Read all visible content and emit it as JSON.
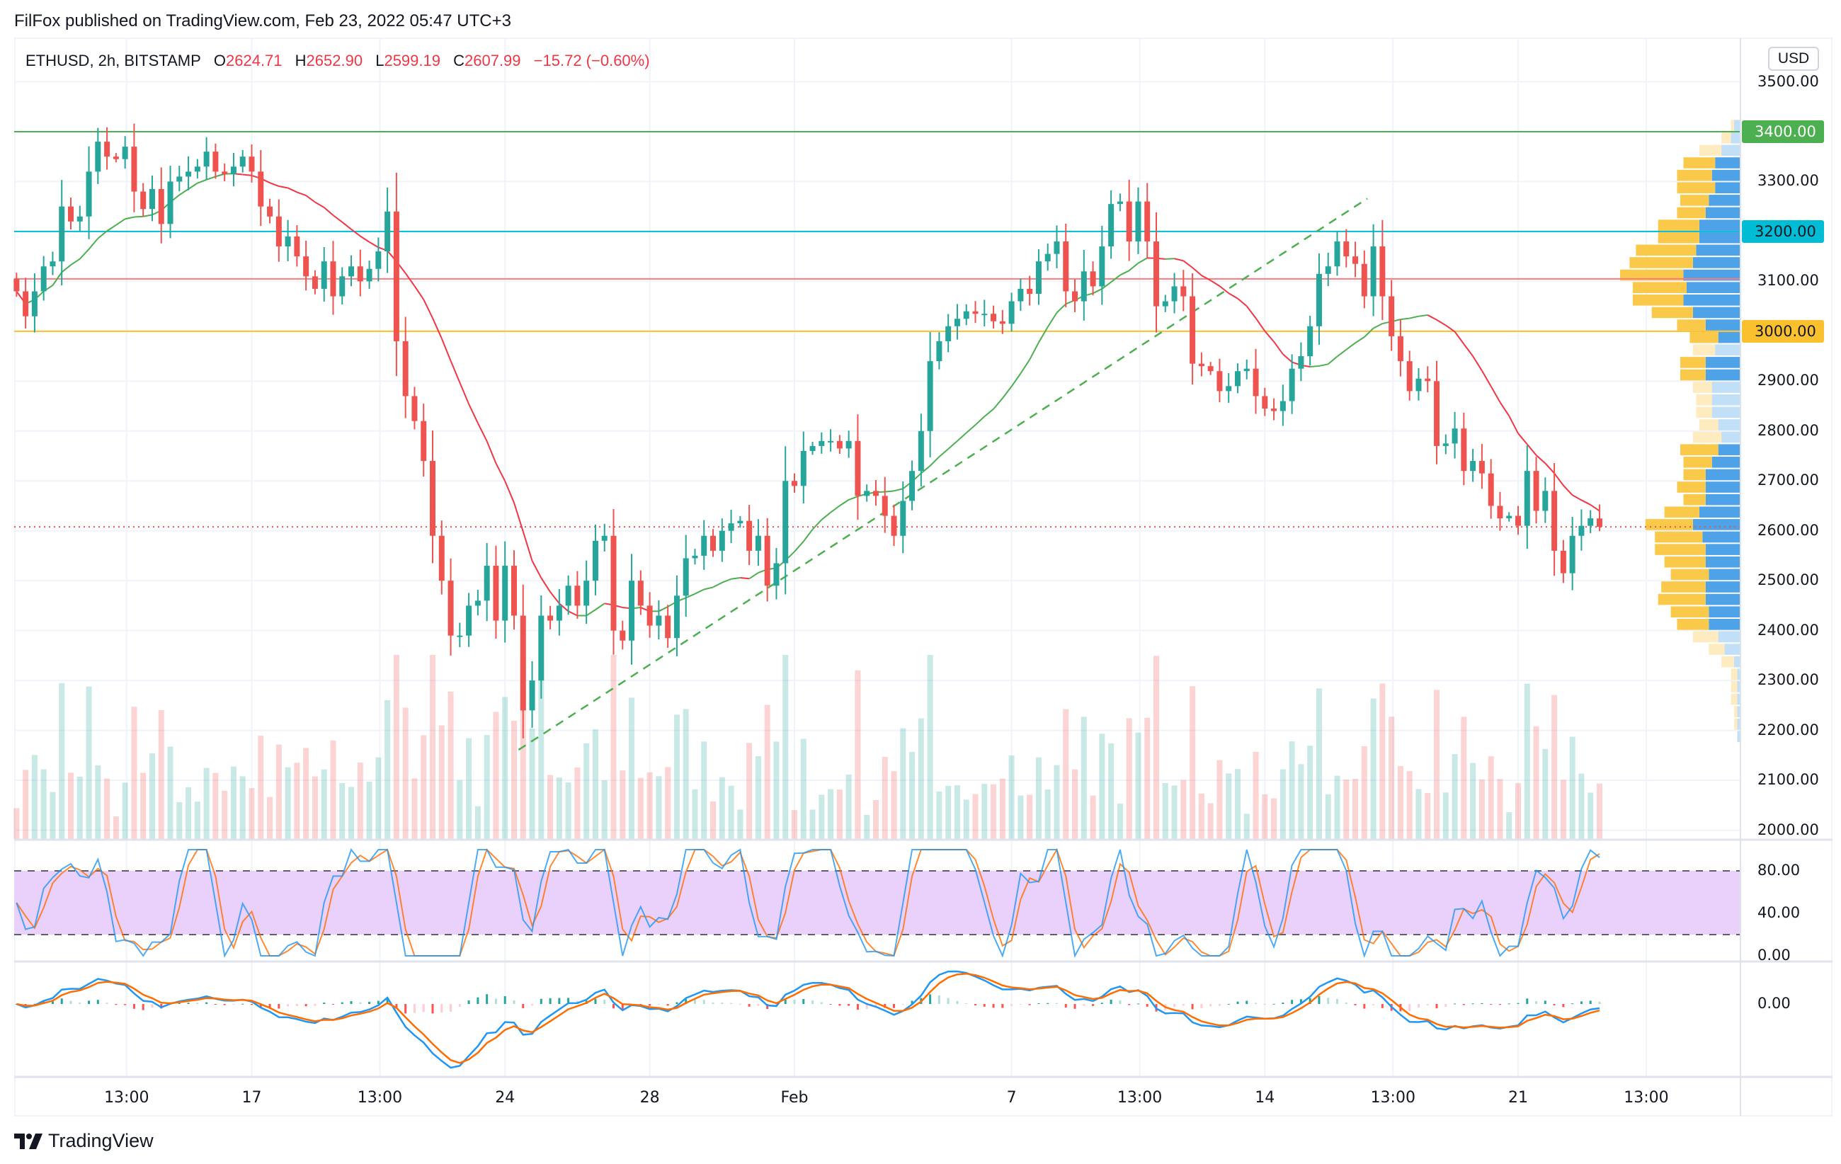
{
  "header": {
    "published": "FilFox published on TradingView.com, Feb 23, 2022 05:47 UTC+3"
  },
  "legend": {
    "symbol": "ETHUSD, 2h, BITSTAMP",
    "o_label": "O",
    "open": "2624.71",
    "h_label": "H",
    "high": "2652.90",
    "l_label": "L",
    "low": "2599.19",
    "c_label": "C",
    "close": "2607.99",
    "change": "−15.72 (−0.60%)"
  },
  "price_axis": {
    "currency": "USD",
    "labels": [
      {
        "price": 3500,
        "text": "3500.00"
      },
      {
        "price": 3300,
        "text": "3300.00"
      },
      {
        "price": 3100,
        "text": "3100.00"
      },
      {
        "price": 2900,
        "text": "2900.00"
      },
      {
        "price": 2800,
        "text": "2800.00"
      },
      {
        "price": 2700,
        "text": "2700.00"
      },
      {
        "price": 2600,
        "text": "2600.00"
      },
      {
        "price": 2500,
        "text": "2500.00"
      },
      {
        "price": 2400,
        "text": "2400.00"
      },
      {
        "price": 2300,
        "text": "2300.00"
      },
      {
        "price": 2200,
        "text": "2200.00"
      },
      {
        "price": 2100,
        "text": "2100.00"
      },
      {
        "price": 2000,
        "text": "2000.00"
      }
    ]
  },
  "levels": [
    {
      "price": 3400,
      "label": "3400.00",
      "color": "#4caf50",
      "text_color": "#ffffff"
    },
    {
      "price": 3200,
      "label": "3200.00",
      "color": "#00bcd4",
      "text_color": "#131722"
    },
    {
      "price": 3105,
      "label": "",
      "color": "#f77c80",
      "text_color": ""
    },
    {
      "price": 3000,
      "label": "3000.00",
      "color": "#fbc02d",
      "text_color": "#131722"
    }
  ],
  "stoch_axis": {
    "labels": [
      {
        "value": 80,
        "text": "80.00"
      },
      {
        "value": 40,
        "text": "40.00"
      },
      {
        "value": 0,
        "text": "0.00"
      }
    ],
    "upper_band": 80,
    "lower_band": 20
  },
  "macd_axis": {
    "labels": [
      {
        "value": 0,
        "text": "0.00"
      }
    ]
  },
  "time_axis": {
    "ticks": [
      {
        "label": "13:00",
        "at": "2022-01-13 13:00"
      },
      {
        "label": "17",
        "at": "2022-01-17 00:00"
      },
      {
        "label": "13:00",
        "at": "2022-01-20 13:00"
      },
      {
        "label": "24",
        "at": "2022-01-24 00:00"
      },
      {
        "label": "28",
        "at": "2022-01-28 00:00"
      },
      {
        "label": "Feb",
        "at": "2022-02-01 00:00"
      },
      {
        "label": "7",
        "at": "2022-02-07 00:00"
      },
      {
        "label": "13:00",
        "at": "2022-02-10 13:00"
      },
      {
        "label": "14",
        "at": "2022-02-14 00:00"
      },
      {
        "label": "13:00",
        "at": "2022-02-17 13:00"
      },
      {
        "label": "21",
        "at": "2022-02-21 00:00"
      },
      {
        "label": "13:00",
        "at": "2022-02-24 13:00"
      }
    ]
  },
  "footer": {
    "brand": "TradingView"
  },
  "colors": {
    "up": "#26a69a",
    "down": "#ef5350",
    "ma_up": "#4caf50",
    "ma_down": "#f23645",
    "stoch_k": "#2196f3",
    "stoch_d": "#ff6d00",
    "stoch_band": "#e9d1fc",
    "macd": "#2196f3",
    "signal": "#ff6d00",
    "trendline": "#4caf50",
    "profile_up": "#fbc94a",
    "profile_down": "#4ea3e8",
    "legend_value": "#f23645"
  },
  "chart_data": {
    "type": "candlestick",
    "symbol": "ETHUSD",
    "interval": "2h",
    "ylim": [
      2000,
      3500
    ],
    "current_price": 2607.99,
    "last_candle": {
      "open": 2624.71,
      "high": 2652.9,
      "low": 2599.19,
      "close": 2607.99
    },
    "trendline": {
      "from": {
        "x": "2022-01-24 09:00",
        "y": 2161
      },
      "to": {
        "x": "2022-02-16 20:00",
        "y": 3266
      }
    },
    "x": [
      "2022-01-10 12:00",
      "2022-01-10 18:00",
      "2022-01-11 00:00",
      "2022-01-11 06:00",
      "2022-01-11 12:00",
      "2022-01-11 18:00",
      "2022-01-12 00:00",
      "2022-01-12 06:00",
      "2022-01-12 12:00",
      "2022-01-12 18:00",
      "2022-01-13 00:00",
      "2022-01-13 06:00",
      "2022-01-13 12:00",
      "2022-01-13 18:00",
      "2022-01-14 00:00",
      "2022-01-14 06:00",
      "2022-01-14 12:00",
      "2022-01-14 18:00",
      "2022-01-15 00:00",
      "2022-01-15 06:00",
      "2022-01-15 12:00",
      "2022-01-15 18:00",
      "2022-01-16 00:00",
      "2022-01-16 06:00",
      "2022-01-16 12:00",
      "2022-01-16 18:00",
      "2022-01-17 00:00",
      "2022-01-17 06:00",
      "2022-01-17 12:00",
      "2022-01-17 18:00",
      "2022-01-18 00:00",
      "2022-01-18 06:00",
      "2022-01-18 12:00",
      "2022-01-18 18:00",
      "2022-01-19 00:00",
      "2022-01-19 06:00",
      "2022-01-19 12:00",
      "2022-01-19 18:00",
      "2022-01-20 00:00",
      "2022-01-20 06:00",
      "2022-01-20 12:00",
      "2022-01-20 18:00",
      "2022-01-21 00:00",
      "2022-01-21 06:00",
      "2022-01-21 12:00",
      "2022-01-21 18:00",
      "2022-01-22 00:00",
      "2022-01-22 06:00",
      "2022-01-22 12:00",
      "2022-01-22 18:00",
      "2022-01-23 00:00",
      "2022-01-23 06:00",
      "2022-01-23 12:00",
      "2022-01-23 18:00",
      "2022-01-24 00:00",
      "2022-01-24 06:00",
      "2022-01-24 12:00",
      "2022-01-24 18:00",
      "2022-01-25 00:00",
      "2022-01-25 06:00",
      "2022-01-25 12:00",
      "2022-01-25 18:00",
      "2022-01-26 00:00",
      "2022-01-26 06:00",
      "2022-01-26 12:00",
      "2022-01-26 18:00",
      "2022-01-27 00:00",
      "2022-01-27 06:00",
      "2022-01-27 12:00",
      "2022-01-27 18:00",
      "2022-01-28 00:00",
      "2022-01-28 06:00",
      "2022-01-28 12:00",
      "2022-01-28 18:00",
      "2022-01-29 00:00",
      "2022-01-29 06:00",
      "2022-01-29 12:00",
      "2022-01-29 18:00",
      "2022-01-30 00:00",
      "2022-01-30 06:00",
      "2022-01-30 12:00",
      "2022-01-30 18:00",
      "2022-01-31 00:00",
      "2022-01-31 06:00",
      "2022-01-31 12:00",
      "2022-01-31 18:00",
      "2022-02-01 00:00",
      "2022-02-01 06:00",
      "2022-02-01 12:00",
      "2022-02-01 18:00",
      "2022-02-02 00:00",
      "2022-02-02 06:00",
      "2022-02-02 12:00",
      "2022-02-02 18:00",
      "2022-02-03 00:00",
      "2022-02-03 06:00",
      "2022-02-03 12:00",
      "2022-02-03 18:00",
      "2022-02-04 00:00",
      "2022-02-04 06:00",
      "2022-02-04 12:00",
      "2022-02-04 18:00",
      "2022-02-05 00:00",
      "2022-02-05 06:00",
      "2022-02-05 12:00",
      "2022-02-05 18:00",
      "2022-02-06 00:00",
      "2022-02-06 06:00",
      "2022-02-06 12:00",
      "2022-02-06 18:00",
      "2022-02-07 00:00",
      "2022-02-07 06:00",
      "2022-02-07 12:00",
      "2022-02-07 18:00",
      "2022-02-08 00:00",
      "2022-02-08 06:00",
      "2022-02-08 12:00",
      "2022-02-08 18:00",
      "2022-02-09 00:00",
      "2022-02-09 06:00",
      "2022-02-09 12:00",
      "2022-02-09 18:00",
      "2022-02-10 00:00",
      "2022-02-10 06:00",
      "2022-02-10 12:00",
      "2022-02-10 18:00",
      "2022-02-11 00:00",
      "2022-02-11 06:00",
      "2022-02-11 12:00",
      "2022-02-11 18:00",
      "2022-02-12 00:00",
      "2022-02-12 06:00",
      "2022-02-12 12:00",
      "2022-02-12 18:00",
      "2022-02-13 00:00",
      "2022-02-13 06:00",
      "2022-02-13 12:00",
      "2022-02-13 18:00",
      "2022-02-14 00:00",
      "2022-02-14 06:00",
      "2022-02-14 12:00",
      "2022-02-14 18:00",
      "2022-02-15 00:00",
      "2022-02-15 06:00",
      "2022-02-15 12:00",
      "2022-02-15 18:00",
      "2022-02-16 00:00",
      "2022-02-16 06:00",
      "2022-02-16 12:00",
      "2022-02-16 18:00",
      "2022-02-17 00:00",
      "2022-02-17 06:00",
      "2022-02-17 12:00",
      "2022-02-17 18:00",
      "2022-02-18 00:00",
      "2022-02-18 06:00",
      "2022-02-18 12:00",
      "2022-02-18 18:00",
      "2022-02-19 00:00",
      "2022-02-19 06:00",
      "2022-02-19 12:00",
      "2022-02-19 18:00",
      "2022-02-20 00:00",
      "2022-02-20 06:00",
      "2022-02-20 12:00",
      "2022-02-20 18:00",
      "2022-02-21 00:00",
      "2022-02-21 06:00",
      "2022-02-21 12:00",
      "2022-02-21 18:00",
      "2022-02-22 00:00",
      "2022-02-22 06:00",
      "2022-02-22 12:00",
      "2022-02-22 18:00",
      "2022-02-23 00:00",
      "2022-02-23 06:00"
    ],
    "close": [
      3080,
      3030,
      3080,
      3130,
      3140,
      3250,
      3220,
      3230,
      3320,
      3380,
      3350,
      3345,
      3370,
      3280,
      3245,
      3285,
      3215,
      3300,
      3310,
      3320,
      3330,
      3360,
      3320,
      3315,
      3330,
      3350,
      3320,
      3250,
      3230,
      3170,
      3190,
      3150,
      3110,
      3085,
      3140,
      3070,
      3110,
      3130,
      3100,
      3125,
      3160,
      3240,
      2980,
      2870,
      2820,
      2740,
      2590,
      2500,
      2390,
      2390,
      2450,
      2460,
      2530,
      2420,
      2530,
      2430,
      2240,
      2300,
      2430,
      2420,
      2450,
      2490,
      2450,
      2500,
      2580,
      2590,
      2400,
      2380,
      2500,
      2450,
      2410,
      2430,
      2385,
      2470,
      2545,
      2550,
      2590,
      2560,
      2600,
      2615,
      2620,
      2560,
      2590,
      2490,
      2535,
      2700,
      2690,
      2760,
      2770,
      2780,
      2780,
      2765,
      2780,
      2670,
      2680,
      2670,
      2630,
      2590,
      2660,
      2720,
      2800,
      2940,
      2980,
      3010,
      3025,
      3040,
      3035,
      3035,
      3020,
      3015,
      3060,
      3085,
      3075,
      3140,
      3155,
      3180,
      3080,
      3060,
      3120,
      3090,
      3170,
      3255,
      3260,
      3180,
      3260,
      3180,
      3050,
      3060,
      3090,
      3070,
      2935,
      2930,
      2920,
      2880,
      2890,
      2920,
      2925,
      2870,
      2845,
      2840,
      2860,
      2925,
      2950,
      3010,
      3115,
      3130,
      3180,
      3150,
      3135,
      3070,
      3170,
      3070,
      2990,
      2940,
      2880,
      2905,
      2900,
      2770,
      2775,
      2805,
      2720,
      2740,
      2715,
      2650,
      2625,
      2630,
      2610,
      2720,
      2640,
      2680,
      2560,
      2515,
      2590,
      2610,
      2625,
      2607.99
    ]
  }
}
